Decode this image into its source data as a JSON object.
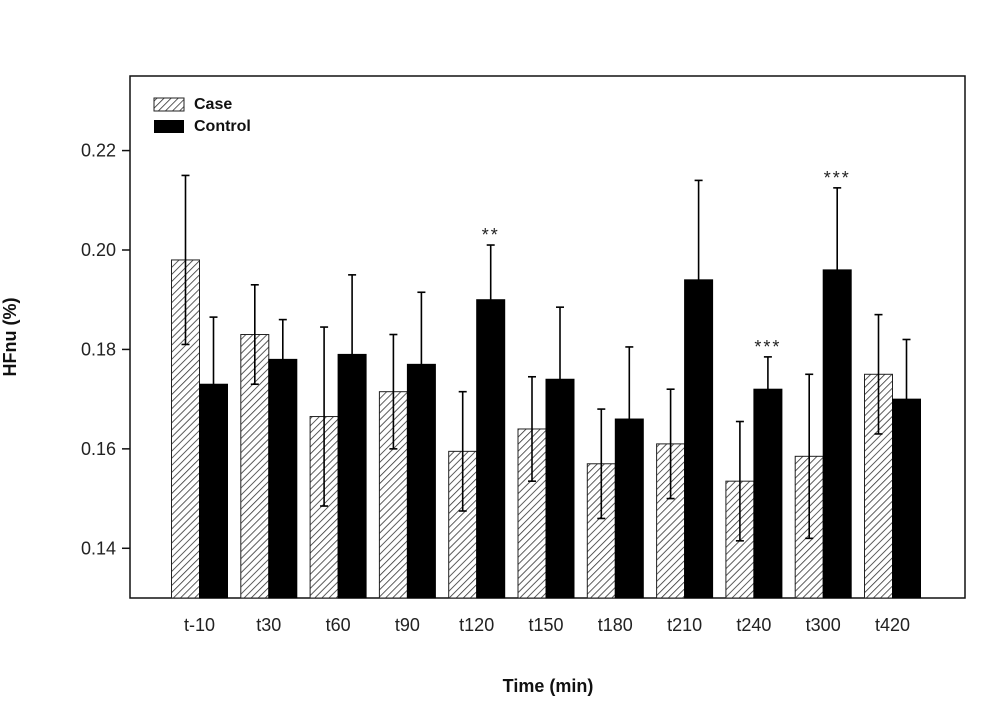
{
  "chart_data": {
    "type": "bar",
    "xlabel": "Time (min)",
    "ylabel": "HFnu (%)",
    "ylim": [
      0.13,
      0.235
    ],
    "yticks": [
      0.14,
      0.16,
      0.18,
      0.2,
      0.22
    ],
    "ytick_labels": [
      "0.14",
      "0.16",
      "0.18",
      "0.20",
      "0.22"
    ],
    "categories": [
      "t-10",
      "t30",
      "t60",
      "t90",
      "t120",
      "t150",
      "t180",
      "t210",
      "t240",
      "t300",
      "t420"
    ],
    "series": [
      {
        "name": "Case",
        "pattern": "hatched",
        "values": [
          0.198,
          0.183,
          0.1665,
          0.1715,
          0.1595,
          0.164,
          0.157,
          0.161,
          0.1535,
          0.1585,
          0.175
        ],
        "errors": [
          0.017,
          0.01,
          0.018,
          0.0115,
          0.012,
          0.0105,
          0.011,
          0.011,
          0.012,
          0.0165,
          0.012
        ]
      },
      {
        "name": "Control",
        "pattern": "solid",
        "values": [
          0.173,
          0.178,
          0.179,
          0.177,
          0.19,
          0.174,
          0.166,
          0.194,
          0.172,
          0.196,
          0.17
        ],
        "errors": [
          0.0135,
          0.008,
          0.016,
          0.0145,
          0.011,
          0.0145,
          0.0145,
          0.02,
          0.0065,
          0.0165,
          0.012
        ]
      }
    ],
    "annotations": [
      {
        "category": "t120",
        "text": "**"
      },
      {
        "category": "t240",
        "text": "***"
      },
      {
        "category": "t300",
        "text": "***"
      }
    ],
    "legend_position": "top-left",
    "grid": false,
    "colors": {
      "case_fill": "#ffffff",
      "case_hatch": "#333333",
      "control_fill": "#000000",
      "axis": "#111111"
    }
  }
}
